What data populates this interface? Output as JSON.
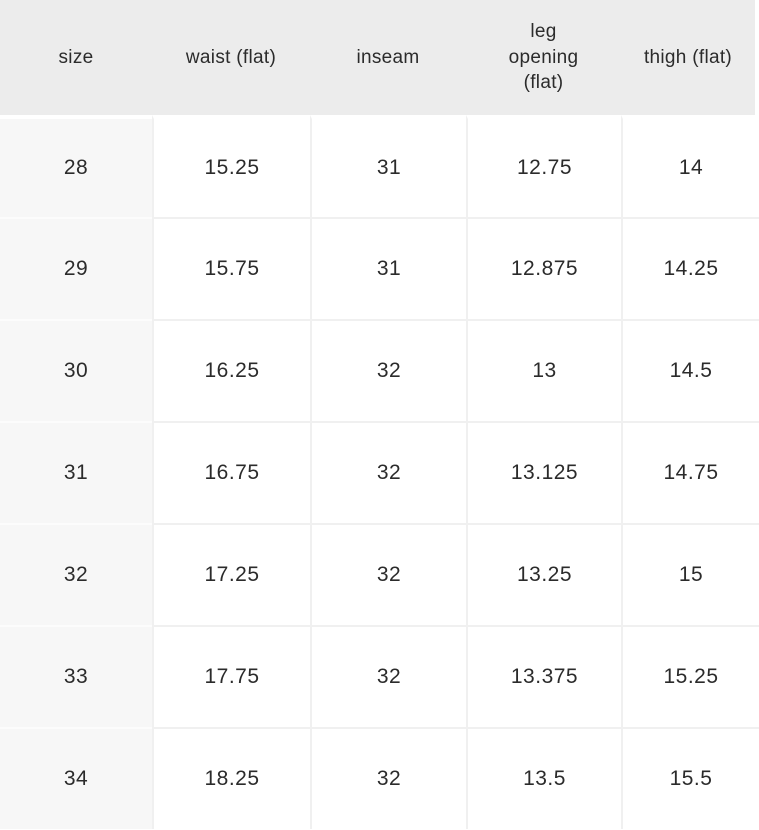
{
  "chart_data": {
    "type": "table",
    "title": "",
    "columns": [
      "size",
      "waist (flat)",
      "inseam",
      "leg opening (flat)",
      "thigh (flat)"
    ],
    "column_lines": [
      [
        "size"
      ],
      [
        "waist (flat)"
      ],
      [
        "inseam"
      ],
      [
        "leg",
        "opening",
        "(flat)"
      ],
      [
        "thigh (flat)"
      ]
    ],
    "rows": [
      [
        "28",
        "15.25",
        "31",
        "12.75",
        "14"
      ],
      [
        "29",
        "15.75",
        "31",
        "12.875",
        "14.25"
      ],
      [
        "30",
        "16.25",
        "32",
        "13",
        "14.5"
      ],
      [
        "31",
        "16.75",
        "32",
        "13.125",
        "14.75"
      ],
      [
        "32",
        "17.25",
        "32",
        "13.25",
        "15"
      ],
      [
        "33",
        "17.75",
        "32",
        "13.375",
        "15.25"
      ],
      [
        "34",
        "18.25",
        "32",
        "13.5",
        "15.5"
      ]
    ]
  },
  "colors": {
    "header-bg": "#ececec",
    "row-header-bg": "#f7f7f7",
    "cell-bg": "#ffffff",
    "grid-line": "#f0f0f0",
    "text": "#2b2b2b"
  }
}
